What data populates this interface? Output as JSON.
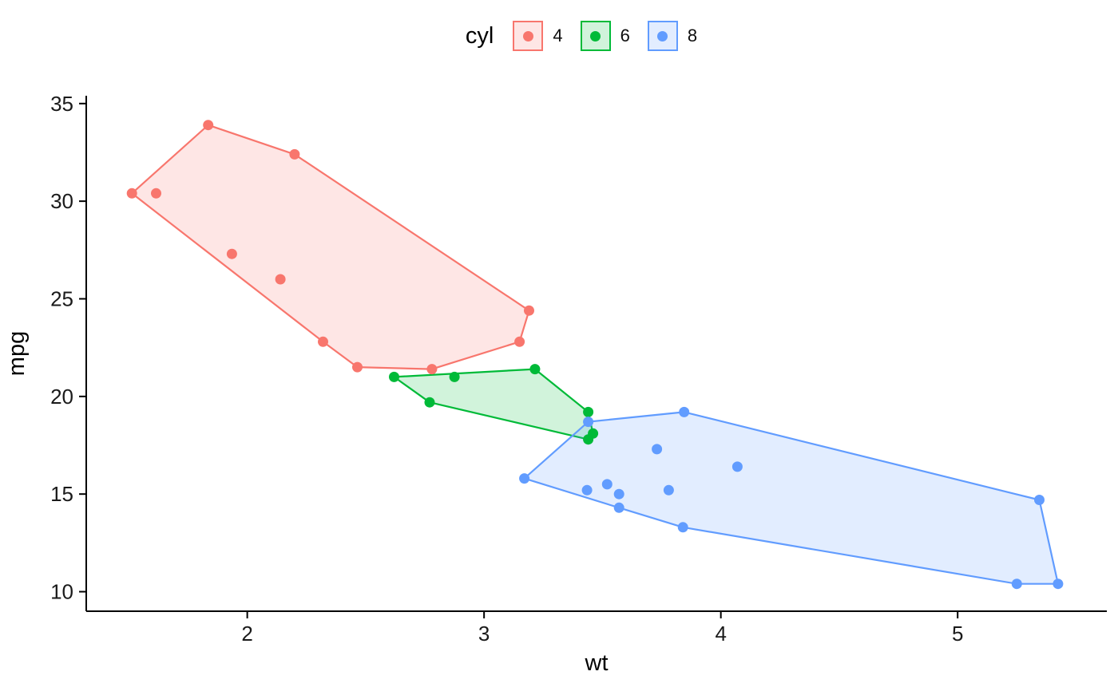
{
  "legend": {
    "title": "cyl",
    "items": [
      {
        "label": "4",
        "color": "#F8766D"
      },
      {
        "label": "6",
        "color": "#00BA38"
      },
      {
        "label": "8",
        "color": "#619CFF"
      }
    ]
  },
  "chart_data": {
    "type": "scatter",
    "title": "",
    "xlabel": "wt",
    "ylabel": "mpg",
    "xlim": [
      1.32,
      5.63
    ],
    "ylim": [
      9.0,
      35.4
    ],
    "xticks": [
      2,
      3,
      4,
      5
    ],
    "yticks": [
      10,
      15,
      20,
      25,
      30,
      35
    ],
    "grid": false,
    "legend_position": "top-center",
    "background": "#ffffff",
    "axis_color": "#000000",
    "series": [
      {
        "name": "4",
        "color": "#F8766D",
        "points": [
          [
            2.32,
            22.8
          ],
          [
            3.19,
            24.4
          ],
          [
            3.15,
            22.8
          ],
          [
            2.2,
            32.4
          ],
          [
            1.615,
            30.4
          ],
          [
            1.835,
            33.9
          ],
          [
            2.465,
            21.5
          ],
          [
            1.935,
            27.3
          ],
          [
            2.14,
            26.0
          ],
          [
            1.513,
            30.4
          ],
          [
            2.78,
            21.4
          ]
        ]
      },
      {
        "name": "6",
        "color": "#00BA38",
        "points": [
          [
            2.62,
            21.0
          ],
          [
            2.875,
            21.0
          ],
          [
            3.215,
            21.4
          ],
          [
            3.46,
            18.1
          ],
          [
            3.44,
            19.2
          ],
          [
            3.44,
            17.8
          ],
          [
            2.77,
            19.7
          ]
        ]
      },
      {
        "name": "8",
        "color": "#619CFF",
        "points": [
          [
            3.44,
            18.7
          ],
          [
            3.57,
            14.3
          ],
          [
            4.07,
            16.4
          ],
          [
            3.73,
            17.3
          ],
          [
            3.78,
            15.2
          ],
          [
            5.25,
            10.4
          ],
          [
            5.424,
            10.4
          ],
          [
            5.345,
            14.7
          ],
          [
            3.52,
            15.5
          ],
          [
            3.435,
            15.2
          ],
          [
            3.84,
            13.3
          ],
          [
            3.845,
            19.2
          ],
          [
            3.17,
            15.8
          ],
          [
            3.57,
            15.0
          ]
        ]
      }
    ]
  }
}
